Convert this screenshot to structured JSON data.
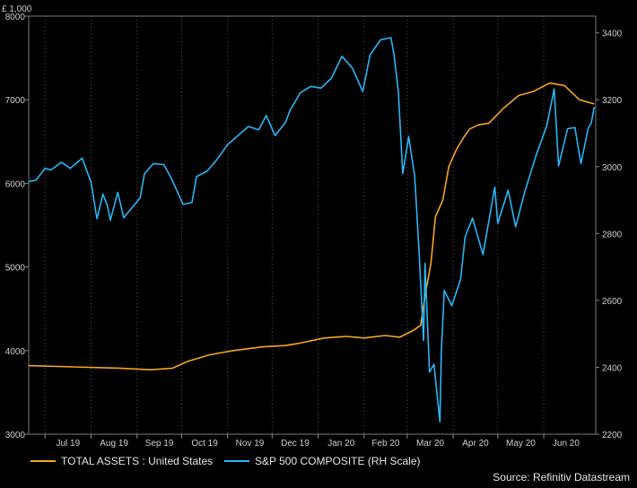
{
  "chart_data": {
    "type": "line",
    "title": "",
    "units_label": "£ 1,000",
    "xlabel": "",
    "ylabel_left": "",
    "ylabel_right": "",
    "x_ticks": [
      "Jul 19",
      "Aug 19",
      "Sep 19",
      "Oct 19",
      "Nov 19",
      "Dec 19",
      "Jan 20",
      "Feb 20",
      "Mar 20",
      "Apr 20",
      "May 20",
      "Jun 20"
    ],
    "x_range": [
      "2019-06-20",
      "2020-07-06"
    ],
    "y_left_lim": [
      3000,
      8000
    ],
    "y_left_ticks": [
      3000,
      4000,
      5000,
      6000,
      7000,
      8000
    ],
    "y_right_lim": [
      2200,
      3450
    ],
    "y_right_ticks": [
      2200,
      2400,
      2600,
      2800,
      3000,
      3200,
      3400
    ],
    "grid": "vertical-month-dashed",
    "legend_position": "bottom-left",
    "colors": {
      "background": "#000000",
      "total_assets": "#f5a623",
      "sp500": "#29b6f6",
      "grid": "#555555"
    },
    "series": [
      {
        "name": "TOTAL ASSETS : United States",
        "axis": "left",
        "points": [
          [
            "2019-06-20",
            3820
          ],
          [
            "2019-07-20",
            3805
          ],
          [
            "2019-08-20",
            3790
          ],
          [
            "2019-09-10",
            3770
          ],
          [
            "2019-09-25",
            3790
          ],
          [
            "2019-10-05",
            3870
          ],
          [
            "2019-10-20",
            3950
          ],
          [
            "2019-11-05",
            4000
          ],
          [
            "2019-11-25",
            4045
          ],
          [
            "2019-12-10",
            4060
          ],
          [
            "2019-12-20",
            4090
          ],
          [
            "2020-01-05",
            4150
          ],
          [
            "2020-01-20",
            4170
          ],
          [
            "2020-02-01",
            4150
          ],
          [
            "2020-02-15",
            4180
          ],
          [
            "2020-02-25",
            4160
          ],
          [
            "2020-03-05",
            4240
          ],
          [
            "2020-03-10",
            4300
          ],
          [
            "2020-03-13",
            4650
          ],
          [
            "2020-03-17",
            5050
          ],
          [
            "2020-03-20",
            5600
          ],
          [
            "2020-03-25",
            5800
          ],
          [
            "2020-03-29",
            6200
          ],
          [
            "2020-04-03",
            6400
          ],
          [
            "2020-04-08",
            6550
          ],
          [
            "2020-04-12",
            6650
          ],
          [
            "2020-04-18",
            6700
          ],
          [
            "2020-04-25",
            6720
          ],
          [
            "2020-05-05",
            6900
          ],
          [
            "2020-05-15",
            7050
          ],
          [
            "2020-05-25",
            7100
          ],
          [
            "2020-06-05",
            7200
          ],
          [
            "2020-06-15",
            7170
          ],
          [
            "2020-06-25",
            7000
          ],
          [
            "2020-07-05",
            6950
          ]
        ]
      },
      {
        "name": "S&P 500 COMPOSITE (RH Scale)",
        "axis": "right",
        "points": [
          [
            "2019-06-20",
            2955
          ],
          [
            "2019-06-25",
            2960
          ],
          [
            "2019-07-01",
            2995
          ],
          [
            "2019-07-05",
            2990
          ],
          [
            "2019-07-12",
            3013
          ],
          [
            "2019-07-18",
            2995
          ],
          [
            "2019-07-26",
            3025
          ],
          [
            "2019-08-01",
            2953
          ],
          [
            "2019-08-05",
            2844
          ],
          [
            "2019-08-09",
            2918
          ],
          [
            "2019-08-12",
            2883
          ],
          [
            "2019-08-14",
            2840
          ],
          [
            "2019-08-19",
            2923
          ],
          [
            "2019-08-23",
            2847
          ],
          [
            "2019-08-27",
            2869
          ],
          [
            "2019-09-03",
            2906
          ],
          [
            "2019-09-06",
            2979
          ],
          [
            "2019-09-12",
            3009
          ],
          [
            "2019-09-19",
            3006
          ],
          [
            "2019-09-24",
            2966
          ],
          [
            "2019-10-02",
            2887
          ],
          [
            "2019-10-08",
            2893
          ],
          [
            "2019-10-11",
            2970
          ],
          [
            "2019-10-18",
            2986
          ],
          [
            "2019-10-25",
            3022
          ],
          [
            "2019-11-01",
            3066
          ],
          [
            "2019-11-08",
            3093
          ],
          [
            "2019-11-15",
            3120
          ],
          [
            "2019-11-22",
            3110
          ],
          [
            "2019-11-27",
            3153
          ],
          [
            "2019-12-03",
            3093
          ],
          [
            "2019-12-10",
            3132
          ],
          [
            "2019-12-13",
            3168
          ],
          [
            "2019-12-20",
            3221
          ],
          [
            "2019-12-27",
            3240
          ],
          [
            "2020-01-03",
            3235
          ],
          [
            "2020-01-10",
            3265
          ],
          [
            "2020-01-17",
            3330
          ],
          [
            "2020-01-24",
            3295
          ],
          [
            "2020-01-31",
            3225
          ],
          [
            "2020-02-05",
            3334
          ],
          [
            "2020-02-12",
            3379
          ],
          [
            "2020-02-19",
            3386
          ],
          [
            "2020-02-21",
            3338
          ],
          [
            "2020-02-24",
            3225
          ],
          [
            "2020-02-27",
            2979
          ],
          [
            "2020-03-02",
            3090
          ],
          [
            "2020-03-06",
            2972
          ],
          [
            "2020-03-09",
            2746
          ],
          [
            "2020-03-12",
            2480
          ],
          [
            "2020-03-13",
            2711
          ],
          [
            "2020-03-16",
            2386
          ],
          [
            "2020-03-19",
            2409
          ],
          [
            "2020-03-23",
            2237
          ],
          [
            "2020-03-24",
            2447
          ],
          [
            "2020-03-26",
            2630
          ],
          [
            "2020-03-31",
            2584
          ],
          [
            "2020-04-06",
            2663
          ],
          [
            "2020-04-09",
            2790
          ],
          [
            "2020-04-14",
            2846
          ],
          [
            "2020-04-21",
            2737
          ],
          [
            "2020-04-29",
            2939
          ],
          [
            "2020-05-01",
            2830
          ],
          [
            "2020-05-08",
            2930
          ],
          [
            "2020-05-13",
            2820
          ],
          [
            "2020-05-19",
            2922
          ],
          [
            "2020-05-27",
            3036
          ],
          [
            "2020-06-03",
            3122
          ],
          [
            "2020-06-08",
            3232
          ],
          [
            "2020-06-11",
            3002
          ],
          [
            "2020-06-17",
            3113
          ],
          [
            "2020-06-22",
            3117
          ],
          [
            "2020-06-26",
            3009
          ],
          [
            "2020-07-01",
            3116
          ],
          [
            "2020-07-03",
            3130
          ],
          [
            "2020-07-05",
            3179
          ]
        ]
      }
    ],
    "source": "Source: Refinitiv Datastream"
  }
}
